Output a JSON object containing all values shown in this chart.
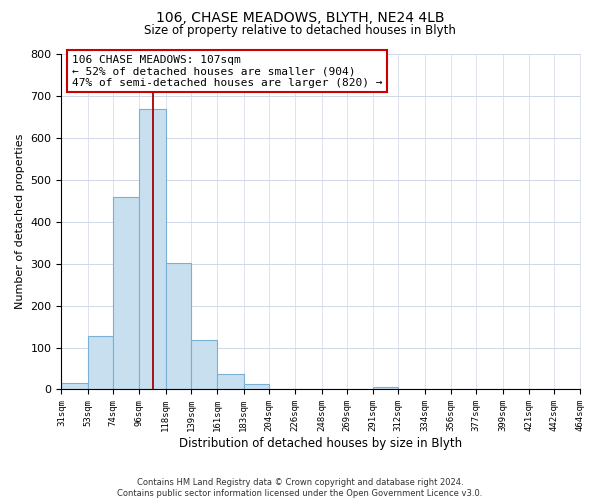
{
  "title": "106, CHASE MEADOWS, BLYTH, NE24 4LB",
  "subtitle": "Size of property relative to detached houses in Blyth",
  "xlabel": "Distribution of detached houses by size in Blyth",
  "ylabel": "Number of detached properties",
  "footnote1": "Contains HM Land Registry data © Crown copyright and database right 2024.",
  "footnote2": "Contains public sector information licensed under the Open Government Licence v3.0.",
  "annotation_line1": "106 CHASE MEADOWS: 107sqm",
  "annotation_line2": "← 52% of detached houses are smaller (904)",
  "annotation_line3": "47% of semi-detached houses are larger (820) →",
  "bar_color": "#c8dff0",
  "bar_edge_color": "#7ab0d4",
  "marker_line_color": "#aa0000",
  "bin_edges": [
    31,
    53,
    74,
    96,
    118,
    139,
    161,
    183,
    204,
    226,
    248,
    269,
    291,
    312,
    334,
    356,
    377,
    399,
    421,
    442,
    464
  ],
  "bin_labels": [
    "31sqm",
    "53sqm",
    "74sqm",
    "96sqm",
    "118sqm",
    "139sqm",
    "161sqm",
    "183sqm",
    "204sqm",
    "226sqm",
    "248sqm",
    "269sqm",
    "291sqm",
    "312sqm",
    "334sqm",
    "356sqm",
    "377sqm",
    "399sqm",
    "421sqm",
    "442sqm",
    "464sqm"
  ],
  "counts": [
    15,
    128,
    458,
    668,
    302,
    117,
    36,
    14,
    0,
    0,
    0,
    0,
    7,
    0,
    0,
    0,
    0,
    0,
    0,
    0
  ],
  "marker_value": 107,
  "ylim": [
    0,
    800
  ],
  "yticks": [
    0,
    100,
    200,
    300,
    400,
    500,
    600,
    700,
    800
  ],
  "background_color": "#ffffff"
}
